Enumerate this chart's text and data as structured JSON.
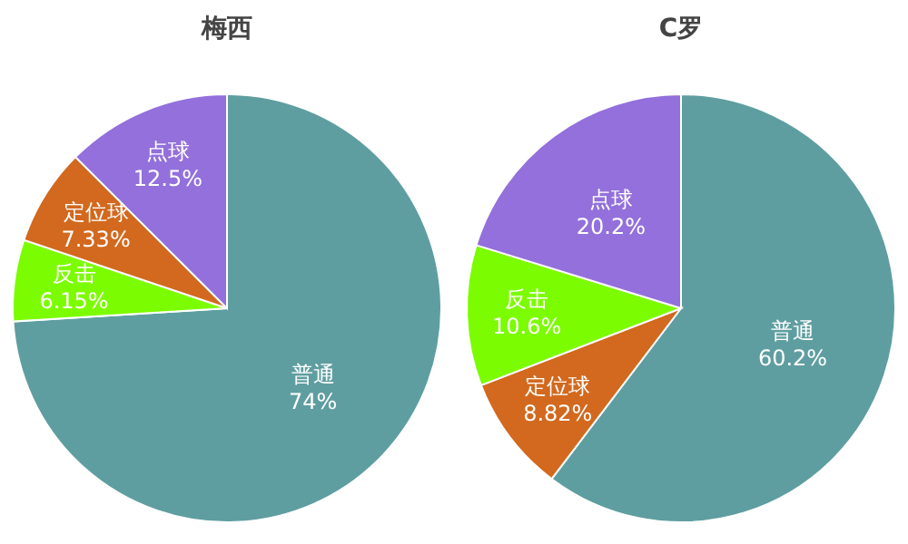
{
  "chart_data": [
    {
      "type": "pie",
      "title": "梅西",
      "categories": [
        "普通",
        "反击",
        "定位球",
        "点球"
      ],
      "values": [
        74,
        6.15,
        7.33,
        12.5
      ],
      "colors": [
        "#5f9ea0",
        "#7cfc00",
        "#d2691e",
        "#9370db"
      ],
      "value_labels": [
        "74%",
        "6.15%",
        "7.33%",
        "12.5%"
      ]
    },
    {
      "type": "pie",
      "title": "C罗",
      "categories": [
        "普通",
        "定位球",
        "反击",
        "点球"
      ],
      "values": [
        60.2,
        8.82,
        10.6,
        20.2
      ],
      "colors": [
        "#5f9ea0",
        "#d2691e",
        "#7cfc00",
        "#9370db"
      ],
      "value_labels": [
        "60.2%",
        "8.82%",
        "10.6%",
        "20.2%"
      ]
    }
  ]
}
